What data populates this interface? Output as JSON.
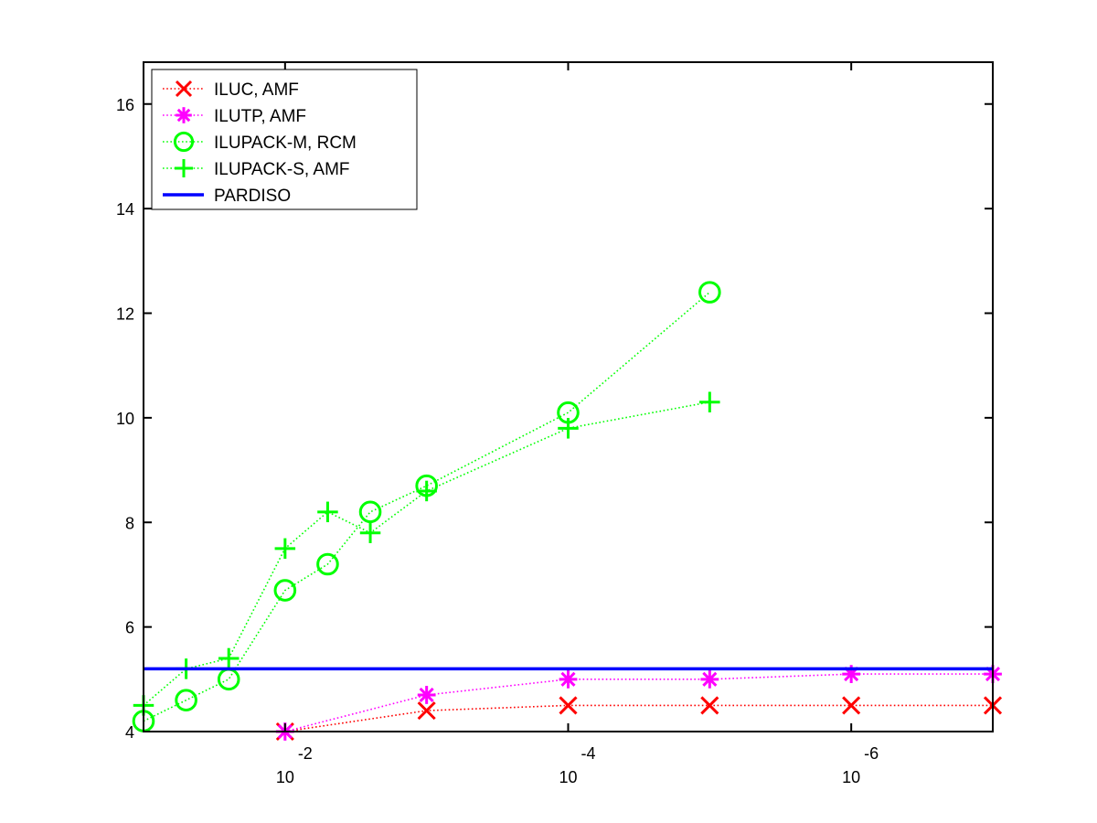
{
  "chart_data": {
    "type": "line",
    "title": "",
    "xlabel": "",
    "ylabel": "",
    "x_scale": "log",
    "x_reversed": true,
    "xlim": [
      0.1,
      1e-07
    ],
    "ylim": [
      4,
      16.8
    ],
    "grid": false,
    "legend_position": "top-left",
    "x_ticks": [
      {
        "value": 0.01,
        "base": "10",
        "exponent": "-2"
      },
      {
        "value": 0.0001,
        "base": "10",
        "exponent": "-4"
      },
      {
        "value": 1e-06,
        "base": "10",
        "exponent": "-6"
      }
    ],
    "y_ticks": [
      {
        "value": 4,
        "label": "4"
      },
      {
        "value": 6,
        "label": "6"
      },
      {
        "value": 8,
        "label": "8"
      },
      {
        "value": 10,
        "label": "10"
      },
      {
        "value": 12,
        "label": "12"
      },
      {
        "value": 14,
        "label": "14"
      },
      {
        "value": 16,
        "label": "16"
      }
    ],
    "series": [
      {
        "name": "ILUC, AMF",
        "color": "#ff0000",
        "marker": "x",
        "line_style": "dotted",
        "x": [
          0.01,
          0.001,
          0.0001,
          1e-05,
          1e-06,
          1e-07
        ],
        "y": [
          4.0,
          4.4,
          4.5,
          4.5,
          4.5,
          4.5
        ]
      },
      {
        "name": "ILUTP, AMF",
        "color": "#ff00ff",
        "marker": "star",
        "line_style": "dotted",
        "x": [
          0.01,
          0.001,
          0.0001,
          1e-05,
          1e-06,
          1e-07
        ],
        "y": [
          4.0,
          4.7,
          5.0,
          5.0,
          5.1,
          5.1
        ]
      },
      {
        "name": "ILUPACK-M, RCM",
        "color": "#00ff00",
        "marker": "circle",
        "line_style": "dotted",
        "x": [
          0.1,
          0.05,
          0.025,
          0.01,
          0.005,
          0.0025,
          0.001,
          0.0001,
          1e-05
        ],
        "y": [
          4.2,
          4.6,
          5.0,
          6.7,
          7.2,
          8.2,
          8.7,
          10.1,
          12.4
        ]
      },
      {
        "name": "ILUPACK-S, AMF",
        "color": "#00ff00",
        "marker": "plus",
        "line_style": "dotted",
        "x": [
          0.1,
          0.05,
          0.025,
          0.01,
          0.005,
          0.0025,
          0.001,
          0.0001,
          1e-05
        ],
        "y": [
          4.5,
          5.2,
          5.4,
          7.5,
          8.2,
          7.8,
          8.6,
          9.8,
          10.3
        ]
      },
      {
        "name": "PARDISO",
        "color": "#0000ff",
        "marker": "none",
        "line_style": "solid",
        "x": [
          0.1,
          1e-07
        ],
        "y": [
          5.2,
          5.2
        ]
      }
    ]
  }
}
